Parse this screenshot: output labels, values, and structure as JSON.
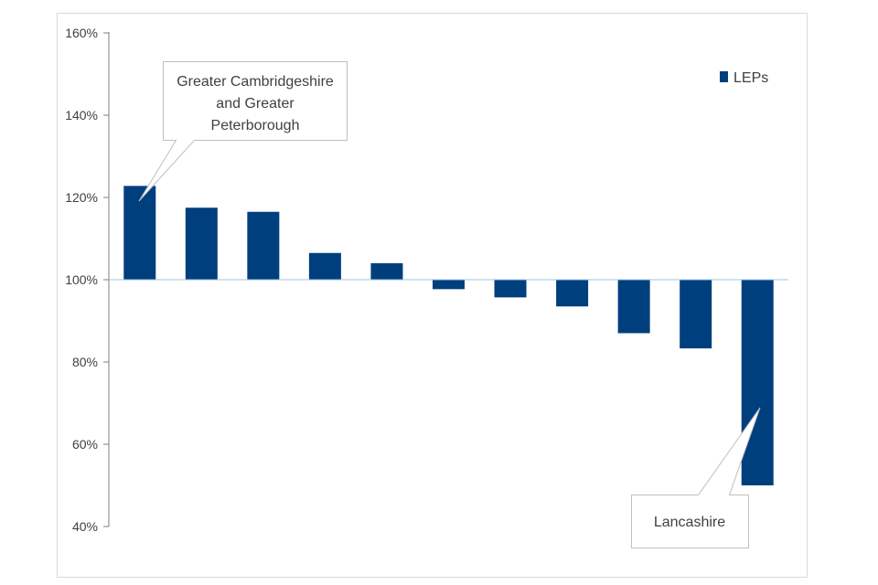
{
  "chart_data": {
    "type": "bar",
    "title": "",
    "xlabel": "",
    "ylabel": "",
    "ylim": [
      40,
      160
    ],
    "baseline": 100,
    "yticks": [
      40,
      60,
      80,
      100,
      120,
      140,
      160
    ],
    "ytick_labels": [
      "40%",
      "60%",
      "80%",
      "100%",
      "120%",
      "140%",
      "160%"
    ],
    "grid": false,
    "legend": "top-right",
    "colors": {
      "bar": "#003F7D",
      "axis": "#7F7F7F",
      "baseline": "#9DC3E6",
      "callout_border": "#BFBFBF"
    },
    "series": [
      {
        "name": "LEPs",
        "values": [
          122.8,
          117.5,
          116.5,
          106.5,
          104.0,
          97.7,
          95.7,
          93.5,
          87.0,
          83.3,
          50.0
        ]
      }
    ],
    "annotations": [
      {
        "text_lines": [
          "Greater Cambridgeshire",
          "and Greater",
          "Peterborough"
        ],
        "target_index": 0
      },
      {
        "text_lines": [
          "Lancashire"
        ],
        "target_index": 10
      }
    ]
  }
}
